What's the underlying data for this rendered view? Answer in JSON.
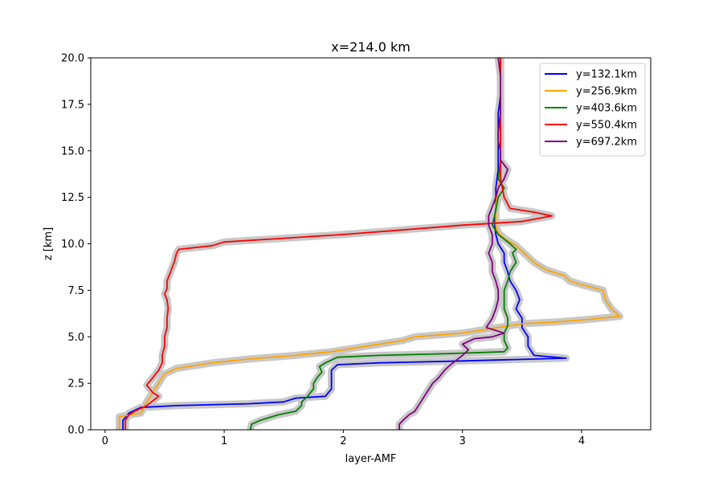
{
  "chart_data": {
    "type": "line",
    "title": "x=214.0 km",
    "xlabel": "layer-AMF",
    "ylabel": "z [km]",
    "xlim": [
      -0.12,
      4.58
    ],
    "ylim": [
      0,
      20
    ],
    "xticks": [
      0,
      1,
      2,
      3,
      4
    ],
    "yticks": [
      0.0,
      2.5,
      5.0,
      7.5,
      10.0,
      12.5,
      15.0,
      17.5,
      20.0
    ],
    "tick_labels_x": [
      "0",
      "1",
      "2",
      "3",
      "4"
    ],
    "tick_labels_y": [
      "0.0",
      "2.5",
      "5.0",
      "7.5",
      "10.0",
      "12.5",
      "15.0",
      "17.5",
      "20.0"
    ],
    "grid": false,
    "legend_position": "top-right",
    "uncertainty_color": "#c8c8c8",
    "series": [
      {
        "name": "y=132.1km",
        "color": "#0000ff",
        "points": [
          [
            0.15,
            0
          ],
          [
            0.15,
            0.5
          ],
          [
            0.2,
            0.9
          ],
          [
            0.3,
            1.2
          ],
          [
            0.6,
            1.3
          ],
          [
            1.2,
            1.4
          ],
          [
            1.5,
            1.5
          ],
          [
            1.6,
            1.7
          ],
          [
            1.85,
            1.8
          ],
          [
            1.9,
            2.2
          ],
          [
            1.9,
            3.2
          ],
          [
            1.95,
            3.5
          ],
          [
            2.3,
            3.6
          ],
          [
            3.0,
            3.7
          ],
          [
            3.87,
            3.85
          ],
          [
            3.6,
            4.0
          ],
          [
            3.55,
            4.5
          ],
          [
            3.55,
            5.0
          ],
          [
            3.5,
            5.5
          ],
          [
            3.5,
            6.0
          ],
          [
            3.45,
            6.5
          ],
          [
            3.48,
            7.0
          ],
          [
            3.45,
            7.5
          ],
          [
            3.4,
            8.0
          ],
          [
            3.38,
            8.5
          ],
          [
            3.35,
            9.0
          ],
          [
            3.35,
            9.5
          ],
          [
            3.3,
            10.0
          ],
          [
            3.28,
            10.5
          ],
          [
            3.27,
            11.0
          ],
          [
            3.28,
            12.0
          ],
          [
            3.28,
            13.0
          ],
          [
            3.3,
            14.0
          ],
          [
            3.3,
            15.0
          ],
          [
            3.3,
            16.0
          ],
          [
            3.3,
            17.0
          ],
          [
            3.32,
            18.0
          ],
          [
            3.32,
            19.0
          ],
          [
            3.32,
            20.0
          ]
        ]
      },
      {
        "name": "y=256.9km",
        "color": "#ffa500",
        "points": [
          [
            0.12,
            0
          ],
          [
            0.12,
            0.7
          ],
          [
            0.3,
            0.9
          ],
          [
            0.35,
            1.5
          ],
          [
            0.4,
            2.0
          ],
          [
            0.45,
            2.5
          ],
          [
            0.5,
            3.0
          ],
          [
            0.6,
            3.3
          ],
          [
            0.9,
            3.6
          ],
          [
            1.2,
            3.8
          ],
          [
            1.6,
            4.0
          ],
          [
            1.9,
            4.2
          ],
          [
            2.2,
            4.5
          ],
          [
            2.5,
            4.8
          ],
          [
            2.6,
            5.0
          ],
          [
            3.0,
            5.2
          ],
          [
            3.3,
            5.5
          ],
          [
            3.5,
            5.7
          ],
          [
            3.8,
            5.8
          ],
          [
            4.0,
            5.9
          ],
          [
            4.32,
            6.1
          ],
          [
            4.25,
            6.5
          ],
          [
            4.2,
            7.0
          ],
          [
            4.18,
            7.5
          ],
          [
            4.0,
            7.8
          ],
          [
            3.9,
            8.0
          ],
          [
            3.85,
            8.3
          ],
          [
            3.7,
            8.6
          ],
          [
            3.6,
            9.0
          ],
          [
            3.55,
            9.3
          ],
          [
            3.5,
            9.6
          ],
          [
            3.45,
            9.9
          ],
          [
            3.35,
            10.3
          ],
          [
            3.3,
            10.6
          ],
          [
            3.28,
            11.0
          ],
          [
            3.28,
            12.0
          ],
          [
            3.3,
            13.0
          ],
          [
            3.32,
            14.0
          ],
          [
            3.32,
            15.0
          ],
          [
            3.32,
            16.0
          ],
          [
            3.32,
            17.0
          ],
          [
            3.32,
            18.0
          ],
          [
            3.32,
            19.0
          ],
          [
            3.3,
            20.0
          ]
        ]
      },
      {
        "name": "y=403.6km",
        "color": "#008000",
        "points": [
          [
            1.22,
            0
          ],
          [
            1.23,
            0.3
          ],
          [
            1.3,
            0.5
          ],
          [
            1.45,
            0.8
          ],
          [
            1.6,
            1.0
          ],
          [
            1.65,
            1.3
          ],
          [
            1.65,
            1.5
          ],
          [
            1.7,
            1.8
          ],
          [
            1.75,
            2.2
          ],
          [
            1.75,
            2.5
          ],
          [
            1.78,
            2.8
          ],
          [
            1.82,
            3.1
          ],
          [
            1.8,
            3.4
          ],
          [
            1.85,
            3.6
          ],
          [
            1.95,
            3.9
          ],
          [
            2.3,
            4.0
          ],
          [
            2.9,
            4.1
          ],
          [
            3.35,
            4.2
          ],
          [
            3.38,
            4.4
          ],
          [
            3.35,
            4.8
          ],
          [
            3.35,
            5.2
          ],
          [
            3.38,
            5.6
          ],
          [
            3.38,
            6.0
          ],
          [
            3.35,
            6.5
          ],
          [
            3.35,
            7.0
          ],
          [
            3.35,
            7.5
          ],
          [
            3.38,
            8.0
          ],
          [
            3.4,
            8.5
          ],
          [
            3.45,
            9.0
          ],
          [
            3.42,
            9.5
          ],
          [
            3.45,
            9.7
          ],
          [
            3.4,
            10.0
          ],
          [
            3.3,
            10.5
          ],
          [
            3.25,
            11.0
          ],
          [
            3.28,
            11.8
          ],
          [
            3.3,
            12.5
          ],
          [
            3.35,
            13.0
          ],
          [
            3.3,
            13.5
          ],
          [
            3.32,
            14.5
          ],
          [
            3.32,
            15.5
          ],
          [
            3.32,
            17.0
          ],
          [
            3.32,
            18.5
          ],
          [
            3.32,
            20.0
          ]
        ]
      },
      {
        "name": "y=550.4km",
        "color": "#ff0000",
        "points": [
          [
            0.17,
            0
          ],
          [
            0.17,
            0.5
          ],
          [
            0.2,
            0.8
          ],
          [
            0.25,
            1.0
          ],
          [
            0.35,
            1.3
          ],
          [
            0.45,
            1.8
          ],
          [
            0.4,
            2.0
          ],
          [
            0.35,
            2.4
          ],
          [
            0.4,
            2.8
          ],
          [
            0.45,
            3.2
          ],
          [
            0.48,
            3.6
          ],
          [
            0.48,
            4.0
          ],
          [
            0.5,
            4.5
          ],
          [
            0.5,
            5.0
          ],
          [
            0.52,
            5.5
          ],
          [
            0.52,
            6.0
          ],
          [
            0.53,
            6.5
          ],
          [
            0.52,
            7.0
          ],
          [
            0.5,
            7.3
          ],
          [
            0.52,
            7.6
          ],
          [
            0.52,
            8.0
          ],
          [
            0.55,
            8.5
          ],
          [
            0.58,
            9.0
          ],
          [
            0.6,
            9.5
          ],
          [
            0.62,
            9.7
          ],
          [
            0.9,
            9.9
          ],
          [
            1.0,
            10.1
          ],
          [
            1.5,
            10.3
          ],
          [
            2.0,
            10.5
          ],
          [
            2.4,
            10.7
          ],
          [
            2.8,
            10.9
          ],
          [
            3.0,
            11.0
          ],
          [
            3.5,
            11.2
          ],
          [
            3.75,
            11.5
          ],
          [
            3.6,
            11.7
          ],
          [
            3.4,
            11.9
          ],
          [
            3.35,
            12.5
          ],
          [
            3.32,
            13.5
          ],
          [
            3.32,
            14.5
          ],
          [
            3.32,
            15.5
          ],
          [
            3.32,
            16.5
          ],
          [
            3.32,
            17.5
          ],
          [
            3.32,
            18.5
          ],
          [
            3.32,
            20.0
          ]
        ]
      },
      {
        "name": "y=697.2km",
        "color": "#800080",
        "points": [
          [
            2.47,
            0
          ],
          [
            2.47,
            0.3
          ],
          [
            2.5,
            0.5
          ],
          [
            2.55,
            0.8
          ],
          [
            2.6,
            1.0
          ],
          [
            2.65,
            1.5
          ],
          [
            2.7,
            2.0
          ],
          [
            2.75,
            2.5
          ],
          [
            2.8,
            2.8
          ],
          [
            2.85,
            3.2
          ],
          [
            2.9,
            3.5
          ],
          [
            3.0,
            4.0
          ],
          [
            3.05,
            4.3
          ],
          [
            3.0,
            4.6
          ],
          [
            3.1,
            4.9
          ],
          [
            3.25,
            5.0
          ],
          [
            3.35,
            5.2
          ],
          [
            3.2,
            5.5
          ],
          [
            3.25,
            6.0
          ],
          [
            3.28,
            6.5
          ],
          [
            3.3,
            7.0
          ],
          [
            3.3,
            7.5
          ],
          [
            3.28,
            8.0
          ],
          [
            3.25,
            8.5
          ],
          [
            3.25,
            9.0
          ],
          [
            3.22,
            9.5
          ],
          [
            3.25,
            10.0
          ],
          [
            3.25,
            10.5
          ],
          [
            3.22,
            11.0
          ],
          [
            3.22,
            11.5
          ],
          [
            3.25,
            12.0
          ],
          [
            3.28,
            12.5
          ],
          [
            3.3,
            13.0
          ],
          [
            3.35,
            13.5
          ],
          [
            3.38,
            14.0
          ],
          [
            3.32,
            14.5
          ],
          [
            3.32,
            15.0
          ],
          [
            3.3,
            15.5
          ],
          [
            3.3,
            16.0
          ],
          [
            3.32,
            17.0
          ],
          [
            3.32,
            18.0
          ],
          [
            3.32,
            19.0
          ],
          [
            3.3,
            20.0
          ]
        ]
      }
    ]
  }
}
